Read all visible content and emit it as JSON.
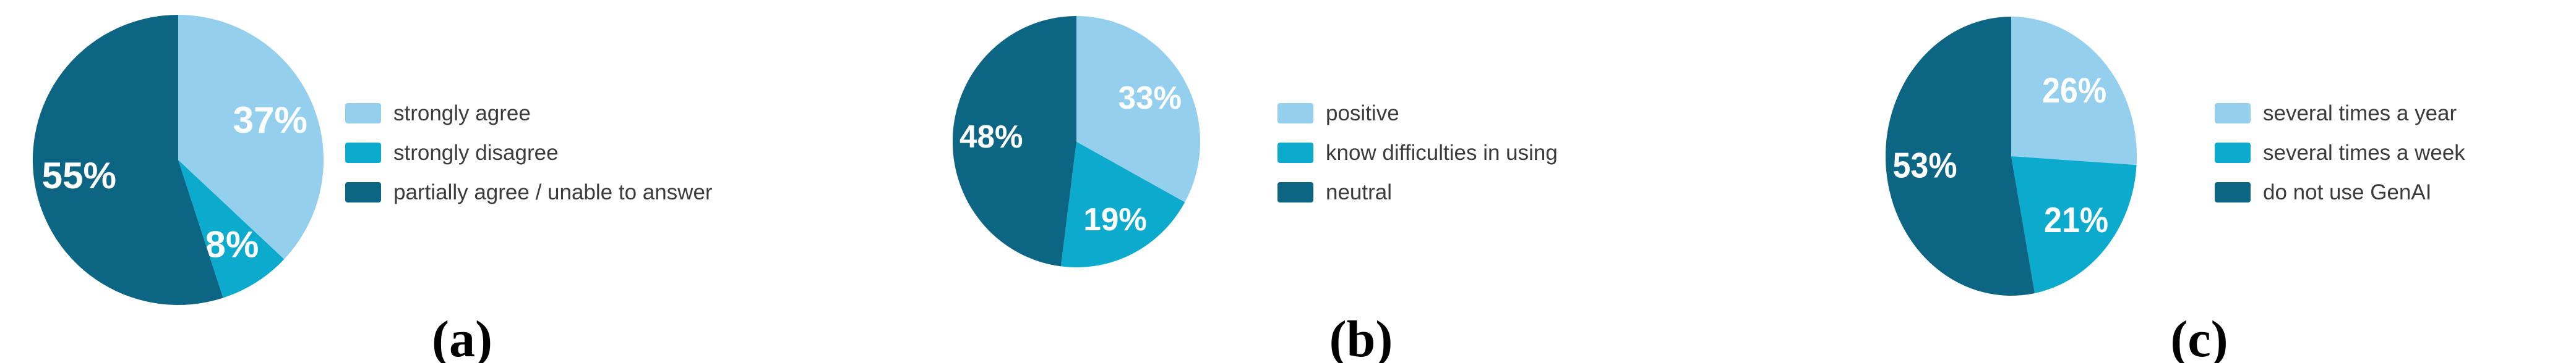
{
  "page": {
    "background": "#ffffff",
    "description": "Three pie charts (a), (b), (c) with right-side legends"
  },
  "palette": {
    "light_blue": "#94d0ed",
    "cyan": "#0cabce",
    "dark_teal": "#0d6584",
    "slice_label_text": "#ffffff",
    "legend_text": "#3b3b3b",
    "caption_text": "#000000"
  },
  "chart_data": [
    {
      "type": "pie",
      "caption": "(a)",
      "labels": [
        "strongly agree",
        "strongly disagree",
        "partially agree / unable to answer"
      ],
      "values": [
        37,
        8,
        55
      ],
      "value_labels": [
        "37%",
        "8%",
        "55%"
      ],
      "colors": [
        "#94d0ed",
        "#0cabce",
        "#0d6584"
      ],
      "start_angle": "top",
      "direction": "clockwise",
      "legend_position": "right"
    },
    {
      "type": "pie",
      "caption": "(b)",
      "labels": [
        "positive",
        "know difficulties in using",
        "neutral"
      ],
      "values": [
        33,
        19,
        48
      ],
      "value_labels": [
        "33%",
        "19%",
        "48%"
      ],
      "colors": [
        "#94d0ed",
        "#0cabce",
        "#0d6584"
      ],
      "start_angle": "top",
      "direction": "clockwise",
      "legend_position": "right"
    },
    {
      "type": "pie",
      "caption": "(c)",
      "labels": [
        "several times a year",
        "several times a week",
        "do not use GenAI"
      ],
      "values": [
        26,
        21,
        53
      ],
      "value_labels": [
        "26%",
        "21%",
        "53%"
      ],
      "colors": [
        "#94d0ed",
        "#0cabce",
        "#0d6584"
      ],
      "start_angle": "top",
      "direction": "clockwise",
      "legend_position": "right"
    }
  ]
}
